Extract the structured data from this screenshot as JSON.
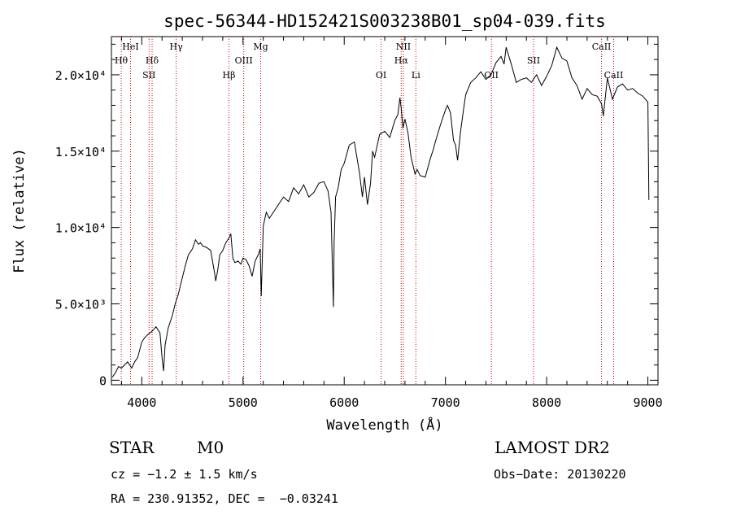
{
  "chart_data": {
    "type": "line",
    "title": "spec-56344-HD152421S003238B01_sp04-039.fits",
    "xlabel": "Wavelength (Å)",
    "ylabel": "Flux (relative)",
    "xlim": [
      3700,
      9100
    ],
    "ylim": [
      -300,
      22500
    ],
    "x_ticks": [
      4000,
      5000,
      6000,
      7000,
      8000,
      9000
    ],
    "x_tick_labels": [
      "4000",
      "5000",
      "6000",
      "7000",
      "8000",
      "9000"
    ],
    "y_ticks": [
      0,
      5000,
      10000,
      15000,
      20000
    ],
    "y_tick_labels": [
      "0",
      "5.0×10³",
      "1.0×10⁴",
      "1.5×10⁴",
      "2.0×10⁴"
    ],
    "grid": false,
    "series": [
      {
        "x": [
          3710,
          3740,
          3770,
          3800,
          3830,
          3860,
          3900,
          3930,
          3960,
          4000,
          4030,
          4060,
          4100,
          4140,
          4180,
          4200,
          4215,
          4230,
          4260,
          4300,
          4330,
          4360,
          4400,
          4430,
          4460,
          4500,
          4530,
          4560,
          4580,
          4600,
          4640,
          4680,
          4720,
          4730,
          4750,
          4770,
          4800,
          4830,
          4860,
          4880,
          4900,
          4920,
          4950,
          4980,
          5000,
          5030,
          5060,
          5090,
          5120,
          5150,
          5170,
          5180,
          5200,
          5230,
          5260,
          5300,
          5350,
          5400,
          5450,
          5500,
          5550,
          5600,
          5650,
          5700,
          5750,
          5800,
          5840,
          5870,
          5885,
          5893,
          5900,
          5915,
          5940,
          5970,
          6000,
          6050,
          6100,
          6150,
          6180,
          6200,
          6230,
          6260,
          6280,
          6300,
          6350,
          6400,
          6450,
          6500,
          6530,
          6550,
          6563,
          6580,
          6600,
          6630,
          6660,
          6700,
          6720,
          6750,
          6800,
          6850,
          6880,
          6900,
          6950,
          7000,
          7020,
          7050,
          7080,
          7100,
          7120,
          7150,
          7180,
          7200,
          7250,
          7300,
          7350,
          7400,
          7450,
          7500,
          7550,
          7580,
          7600,
          7650,
          7700,
          7750,
          7800,
          7850,
          7900,
          7950,
          8000,
          8050,
          8100,
          8150,
          8200,
          8250,
          8300,
          8350,
          8400,
          8450,
          8500,
          8542,
          8560,
          8600,
          8650,
          8700,
          8750,
          8800,
          8850,
          8900,
          8950,
          9000,
          9010
        ],
        "y": [
          200,
          500,
          900,
          800,
          1000,
          1200,
          800,
          1200,
          1500,
          2500,
          2800,
          3000,
          3200,
          3500,
          3100,
          1500,
          600,
          2300,
          3400,
          4200,
          5000,
          5600,
          6700,
          7500,
          8200,
          8600,
          9200,
          8900,
          9000,
          8800,
          8700,
          8500,
          7000,
          6500,
          7200,
          8200,
          8500,
          9000,
          9300,
          9600,
          8000,
          7700,
          7800,
          7600,
          8000,
          7900,
          7500,
          6800,
          7800,
          8200,
          8600,
          5500,
          10100,
          11000,
          10600,
          11000,
          11500,
          12000,
          11700,
          12600,
          12200,
          12800,
          12000,
          12300,
          12900,
          13000,
          12400,
          11000,
          7000,
          4800,
          9000,
          12000,
          12600,
          13800,
          14200,
          15400,
          15600,
          13600,
          12000,
          13300,
          11500,
          12900,
          15000,
          14600,
          16100,
          16300,
          15900,
          17000,
          17400,
          18500,
          17800,
          16500,
          17100,
          16200,
          14600,
          13500,
          13800,
          13400,
          13300,
          14500,
          15100,
          15600,
          16700,
          17700,
          18000,
          17500,
          15700,
          15400,
          14400,
          16300,
          17800,
          18700,
          19500,
          19800,
          20200,
          19700,
          20000,
          20800,
          21200,
          20700,
          21800,
          20700,
          19500,
          19700,
          19800,
          19500,
          20000,
          19300,
          19900,
          20600,
          21800,
          21100,
          20900,
          19800,
          19300,
          18400,
          19100,
          18700,
          18600,
          18100,
          17300,
          19800,
          18400,
          19200,
          19400,
          19000,
          19100,
          18800,
          18600,
          18200,
          11800
        ]
      }
    ],
    "vlines": [
      {
        "x": 3797,
        "label": "Hθ",
        "row": 2
      },
      {
        "x": 3889,
        "label": "HeI",
        "row": 1
      },
      {
        "x": 4072,
        "label": "SII",
        "row": 3
      },
      {
        "x": 4102,
        "label": "Hδ",
        "row": 2
      },
      {
        "x": 4340,
        "label": "Hγ",
        "row": 1
      },
      {
        "x": 4861,
        "label": "Hβ",
        "row": 3
      },
      {
        "x": 5007,
        "label": "OIII",
        "row": 2
      },
      {
        "x": 5175,
        "label": "Mg",
        "row": 1
      },
      {
        "x": 6364,
        "label": "OI",
        "row": 3
      },
      {
        "x": 6563,
        "label": "Hα",
        "row": 2
      },
      {
        "x": 6584,
        "label": "NII",
        "row": 1
      },
      {
        "x": 6708,
        "label": "Li",
        "row": 3
      },
      {
        "x": 7454,
        "label": "OII",
        "row": 3
      },
      {
        "x": 7870,
        "label": "SII",
        "row": 2
      },
      {
        "x": 8542,
        "label": "CaII",
        "row": 1
      },
      {
        "x": 8662,
        "label": "CaII",
        "row": 3
      }
    ]
  },
  "info": {
    "object_class": "STAR",
    "subclass": "M0",
    "survey": "LAMOST DR2",
    "cz": "cz = −1.2 ± 1.5 km/s",
    "obs_date": "Obs−Date: 20130220",
    "coords": "RA = 230.91352, DEC =  −0.03241"
  },
  "colors": {
    "line": "#000000",
    "marker": "#cc0000",
    "background": "#ffffff"
  }
}
